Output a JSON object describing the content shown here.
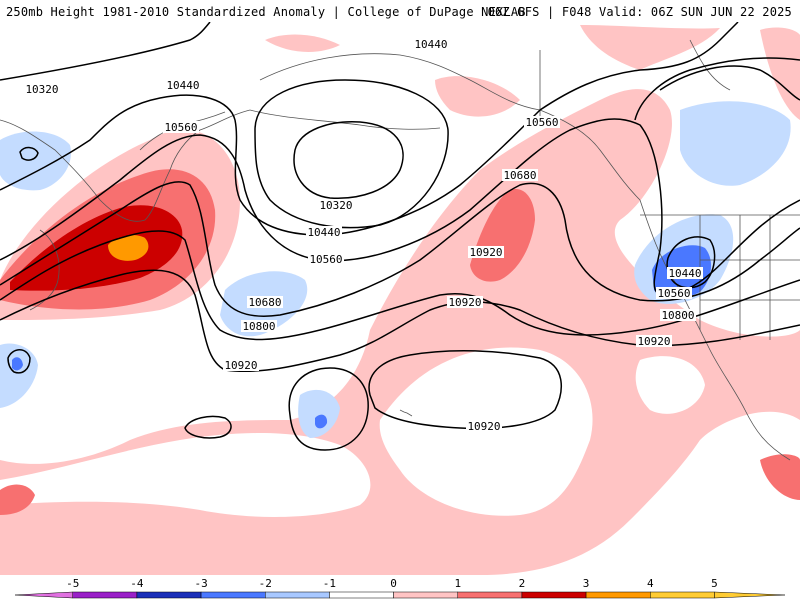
{
  "title": {
    "left": "250mb Height 1981-2010 Standardized Anomaly | College of DuPage NEXLAB",
    "right": "06Z GFS | F048 Valid: 06Z SUN JUN 22 2025"
  },
  "colors": {
    "background": "#ffffff",
    "pos1": "#ffc4c4",
    "pos2": "#f77070",
    "pos3": "#cc0000",
    "pos4": "#ff9900",
    "neg1": "#c4dcff",
    "neg2": "#4a78ff",
    "neg3": "#2a4fd8",
    "coast": "#555555",
    "contour": "#000000"
  },
  "legend": {
    "ticks": [
      "-5",
      "-4",
      "-3",
      "-2",
      "-1",
      "0",
      "1",
      "2",
      "3",
      "4",
      "5"
    ],
    "colors": [
      "#e070e0",
      "#9a1fc8",
      "#1a2fb8",
      "#4a78ff",
      "#a8c8ff",
      "#ffffff",
      "#ffc4c4",
      "#f77070",
      "#cc0000",
      "#ff9900",
      "#ffcc33"
    ]
  },
  "contour_labels": [
    "10320",
    "10440",
    "10560",
    "10320",
    "10440",
    "10560",
    "10680",
    "10800",
    "10920",
    "10440",
    "10560",
    "10680",
    "10920",
    "10920",
    "10920",
    "10440",
    "10560",
    "10800",
    "10920"
  ]
}
